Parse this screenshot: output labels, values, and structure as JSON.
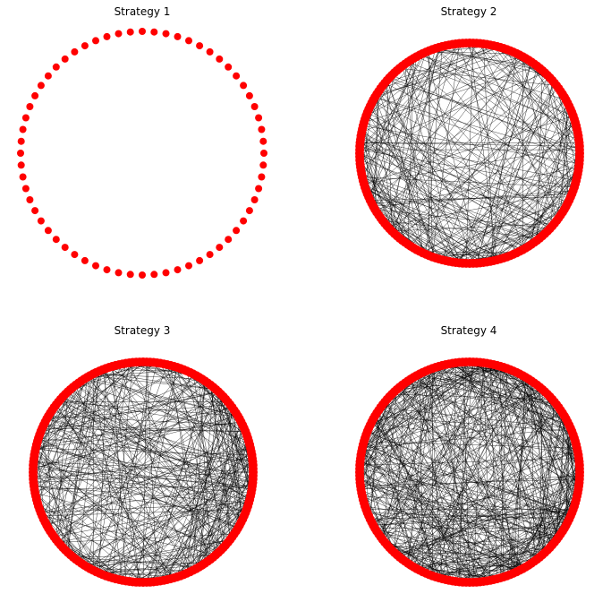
{
  "figure": {
    "panels": [
      {
        "title": "Strategy 1",
        "node_count": 64,
        "edge_count": 0
      },
      {
        "title": "Strategy 2",
        "node_count": 200,
        "edge_count": 320
      },
      {
        "title": "Strategy 3",
        "node_count": 200,
        "edge_count": 420
      },
      {
        "title": "Strategy 4",
        "node_count": 200,
        "edge_count": 520
      }
    ],
    "colors": {
      "node": "#ff0000",
      "edge": "#000000",
      "background": "#ffffff"
    }
  }
}
